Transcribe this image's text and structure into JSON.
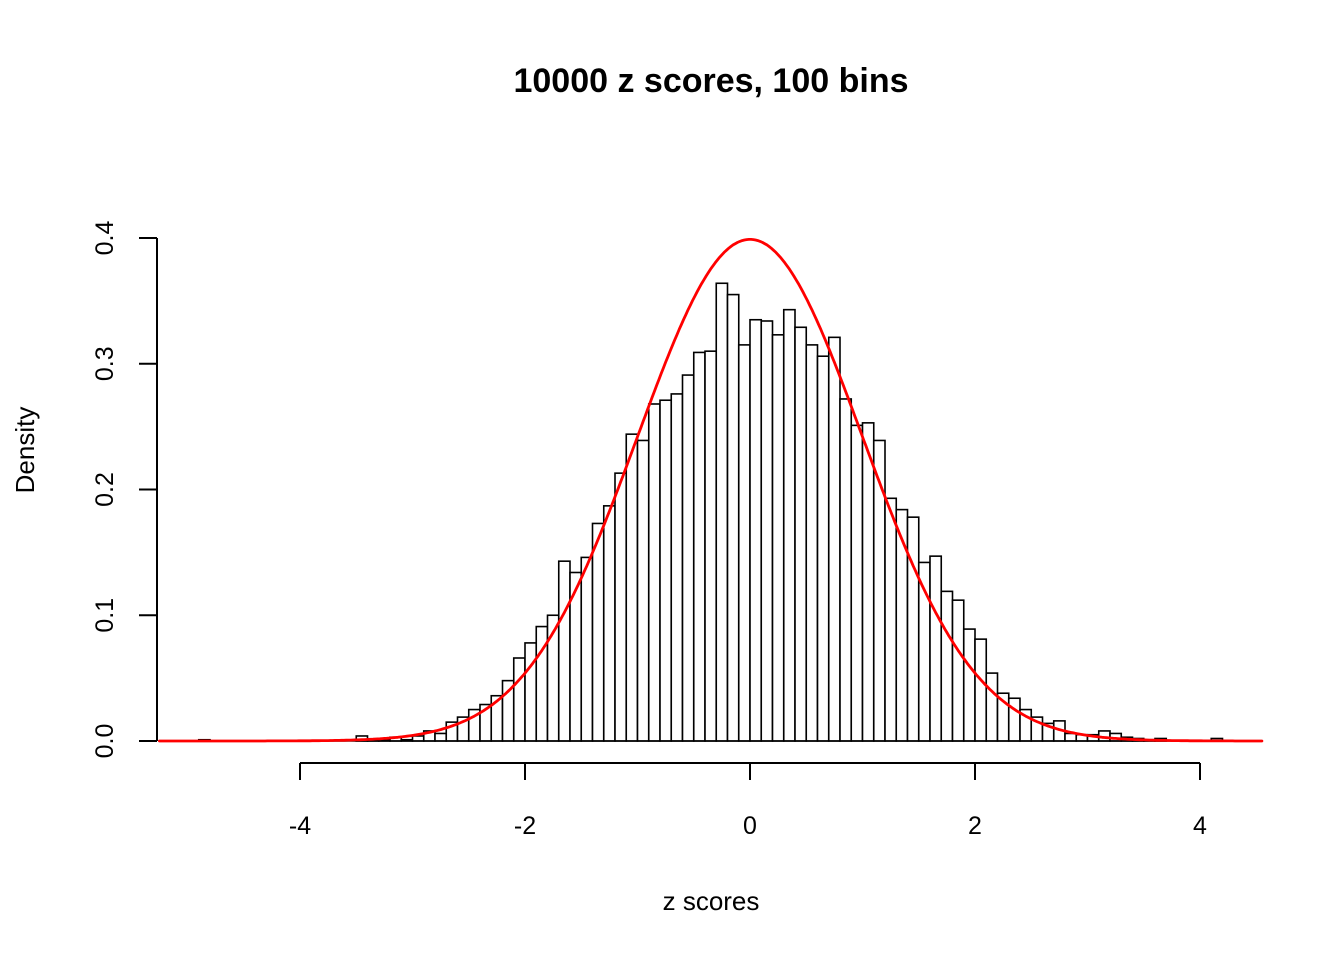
{
  "title": "10000 z scores, 100 bins",
  "colors": {
    "background": "#FFFFFF",
    "axis": "#000000",
    "bar_fill": "#FFFFFF",
    "bar_stroke": "#000000",
    "curve": "#FF0000",
    "text": "#000000"
  },
  "chart_data": {
    "type": "histogram",
    "title": "10000 z scores, 100 bins",
    "xlabel": "z scores",
    "ylabel": "Density",
    "xlim": [
      -5.3,
      4.6
    ],
    "ylim": [
      0.0,
      0.4
    ],
    "grid": false,
    "legend": "none",
    "x_ticks": {
      "values": [
        -4,
        -2,
        0,
        2,
        4
      ],
      "labels": [
        "-4",
        "-2",
        "0",
        "2",
        "4"
      ]
    },
    "y_ticks": {
      "values": [
        0.0,
        0.1,
        0.2,
        0.3,
        0.4
      ],
      "labels": [
        "0.0",
        "0.1",
        "0.2",
        "0.3",
        "0.4"
      ]
    },
    "bin_width": 0.1,
    "bins": {
      "left_edges": [
        -4.9,
        -4.8,
        -4.7,
        -4.6,
        -4.5,
        -4.4,
        -4.3,
        -4.2,
        -4.1,
        -4.0,
        -3.9,
        -3.8,
        -3.7,
        -3.6,
        -3.5,
        -3.4,
        -3.3,
        -3.2,
        -3.1,
        -3.0,
        -2.9,
        -2.8,
        -2.7,
        -2.6,
        -2.5,
        -2.4,
        -2.3,
        -2.2,
        -2.1,
        -2.0,
        -1.9,
        -1.8,
        -1.7,
        -1.6,
        -1.5,
        -1.4,
        -1.3,
        -1.2,
        -1.1,
        -1.0,
        -0.9,
        -0.8,
        -0.7,
        -0.6,
        -0.5,
        -0.4,
        -0.3,
        -0.2,
        -0.1,
        0.0,
        0.1,
        0.2,
        0.3,
        0.4,
        0.5,
        0.6,
        0.7,
        0.8,
        0.9,
        1.0,
        1.1,
        1.2,
        1.3,
        1.4,
        1.5,
        1.6,
        1.7,
        1.8,
        1.9,
        2.0,
        2.1,
        2.2,
        2.3,
        2.4,
        2.5,
        2.6,
        2.7,
        2.8,
        2.9,
        3.0,
        3.1,
        3.2,
        3.3,
        3.4,
        3.5,
        3.6,
        3.7,
        3.8,
        3.9,
        4.0,
        4.1
      ],
      "densities": [
        0.001,
        0,
        0,
        0,
        0,
        0,
        0,
        0,
        0,
        0,
        0,
        0,
        0,
        0,
        0.004,
        0.001,
        0.001,
        0.003,
        0.001,
        0.004,
        0.008,
        0.006,
        0.015,
        0.019,
        0.025,
        0.029,
        0.036,
        0.048,
        0.066,
        0.078,
        0.091,
        0.1,
        0.143,
        0.134,
        0.146,
        0.173,
        0.187,
        0.213,
        0.244,
        0.239,
        0.268,
        0.271,
        0.276,
        0.291,
        0.309,
        0.31,
        0.364,
        0.355,
        0.315,
        0.335,
        0.334,
        0.323,
        0.343,
        0.329,
        0.315,
        0.306,
        0.321,
        0.272,
        0.251,
        0.253,
        0.239,
        0.193,
        0.184,
        0.178,
        0.142,
        0.147,
        0.119,
        0.112,
        0.089,
        0.081,
        0.054,
        0.038,
        0.034,
        0.025,
        0.019,
        0.014,
        0.016,
        0.006,
        0.005,
        0.005,
        0.008,
        0.006,
        0.003,
        0.002,
        0.001,
        0.002,
        0,
        0,
        0,
        0,
        0.002
      ]
    },
    "overlay_curve": {
      "kind": "normal-density",
      "mean": 0,
      "sd": 1,
      "color": "#FF0000",
      "x_range": [
        -5.25,
        4.55
      ],
      "peak_y": 0.3989
    }
  }
}
